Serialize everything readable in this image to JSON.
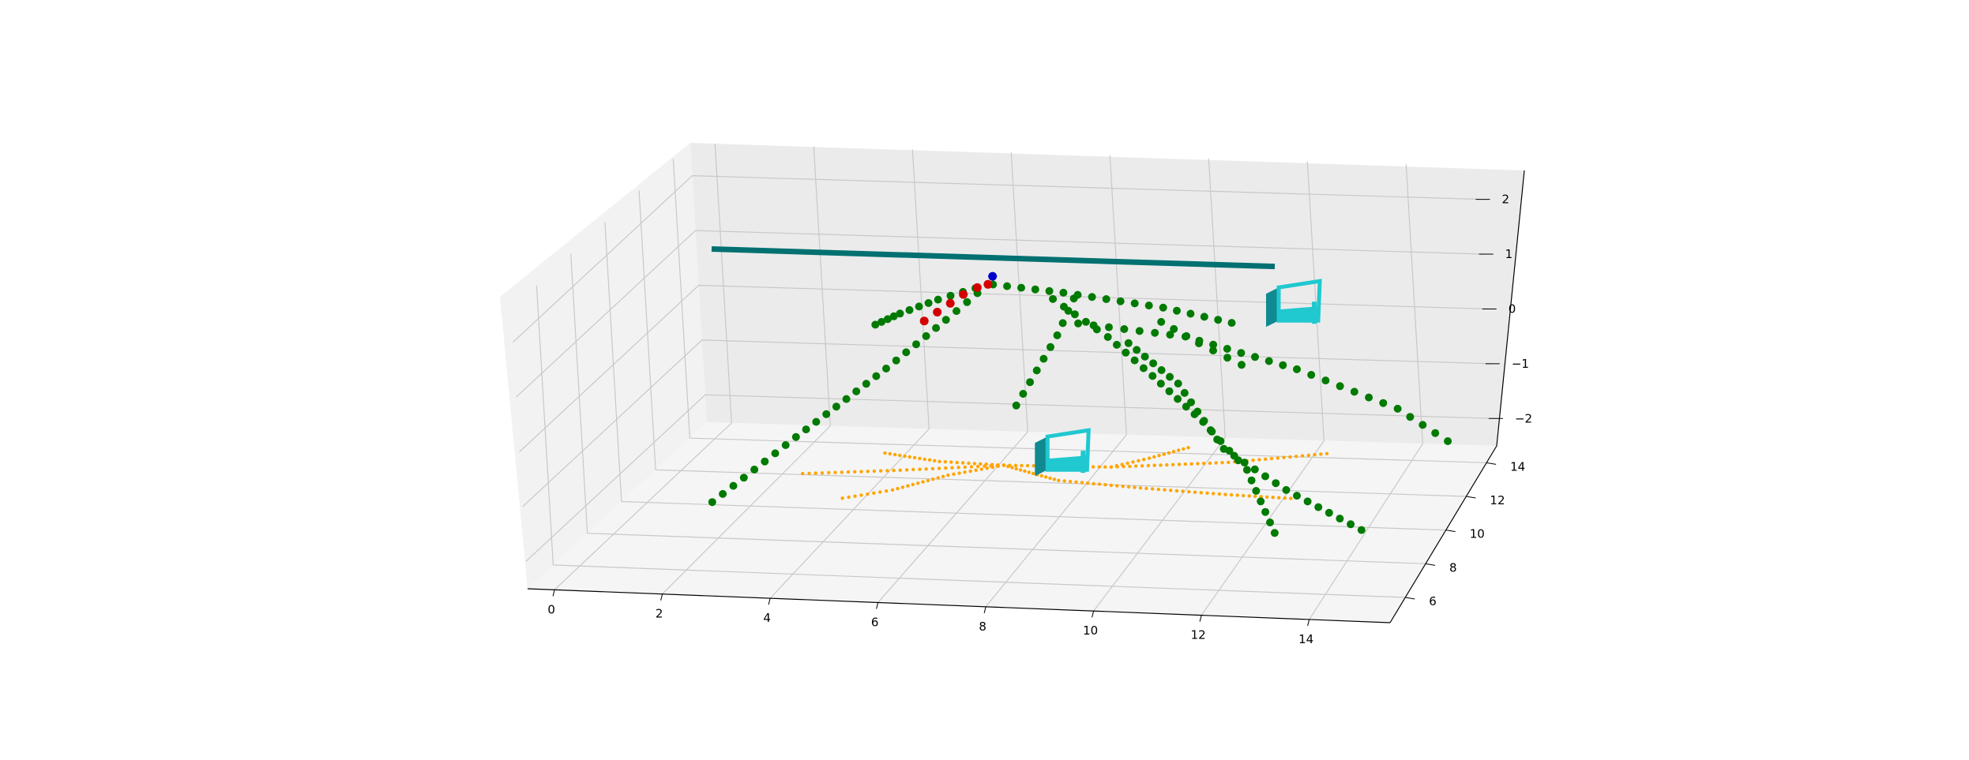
{
  "chart_data": {
    "type": "scatter",
    "projection": "3d",
    "grid": true,
    "title": "",
    "xlabel": "",
    "ylabel": "",
    "zlabel": "",
    "xlim": [
      -0.5,
      15.5
    ],
    "ylim": [
      4.5,
      15
    ],
    "zlim": [
      -2.5,
      2.6
    ],
    "x_ticks": [
      "0",
      "2",
      "4",
      "6",
      "8",
      "10",
      "12",
      "14"
    ],
    "y_ticks": [
      "6",
      "8",
      "10",
      "12",
      "14"
    ],
    "z_ticks": [
      "−2",
      "−1",
      "0",
      "1",
      "2"
    ],
    "colors": {
      "pane_left": "#f2f2f2",
      "pane_back": "#ebebeb",
      "pane_floor": "#f5f5f5",
      "grid": "#c8c8c8",
      "branches": "#007a00",
      "highlight": "#d40000",
      "top_point": "#0000cc",
      "projection": "#ffa500",
      "bar": "#007070",
      "box": "#20c8d0",
      "box_dark": "#108a90"
    },
    "series": [
      {
        "marker": "green-dot",
        "branches": [
          [
            [
              6.2,
              12.3,
              1.0
            ],
            [
              5.6,
              11.4,
              0.6
            ],
            [
              4.8,
              10.0,
              0.1
            ],
            [
              3.6,
              8.0,
              -0.6
            ],
            [
              2.5,
              6.2,
              -1.3
            ]
          ],
          [
            [
              6.2,
              12.3,
              1.0
            ],
            [
              5.1,
              12.6,
              0.6
            ],
            [
              4.2,
              13.0,
              0.2
            ],
            [
              3.5,
              13.6,
              -0.2
            ]
          ],
          [
            [
              6.3,
              12.3,
              1.0
            ],
            [
              7.6,
              12.6,
              0.8
            ],
            [
              9.4,
              13.2,
              0.4
            ],
            [
              10.7,
              13.4,
              0.1
            ]
          ],
          [
            [
              7.5,
              12.2,
              0.8
            ],
            [
              8.6,
              12.0,
              0.2
            ],
            [
              9.6,
              11.4,
              -0.3
            ],
            [
              10.8,
              10.4,
              -0.8
            ],
            [
              11.8,
              9.6,
              -1.4
            ],
            [
              12.6,
              8.2,
              -2.1
            ]
          ],
          [
            [
              8.0,
              12.1,
              0.4
            ],
            [
              10.0,
              12.5,
              0.1
            ],
            [
              12.2,
              12.4,
              -0.4
            ],
            [
              14.2,
              12.2,
              -1.0
            ],
            [
              15.2,
              12.0,
              -1.5
            ]
          ],
          [
            [
              9.0,
              12.0,
              0.1
            ],
            [
              10.2,
              11.0,
              -0.3
            ],
            [
              11.4,
              9.5,
              -1.0
            ],
            [
              12.8,
              8.5,
              -1.4
            ],
            [
              14.4,
              7.6,
              -1.8
            ]
          ],
          [
            [
              7.8,
              12.6,
              0.7
            ],
            [
              7.6,
              12.0,
              0.2
            ],
            [
              7.3,
              11.5,
              -0.3
            ],
            [
              7.0,
              11.0,
              -0.8
            ]
          ],
          [
            [
              9.4,
              13.0,
              0.2
            ],
            [
              10.1,
              13.1,
              -0.2
            ],
            [
              10.9,
              13.2,
              -0.6
            ]
          ]
        ]
      },
      {
        "marker": "red-dot",
        "points": [
          [
            4.8,
            12.6,
            0.2
          ],
          [
            5.1,
            12.5,
            0.4
          ],
          [
            5.4,
            12.4,
            0.6
          ],
          [
            5.7,
            12.3,
            0.8
          ],
          [
            6.0,
            12.25,
            0.95
          ],
          [
            6.2,
            12.3,
            1.0
          ]
        ]
      },
      {
        "marker": "blue-dot",
        "points": [
          [
            6.3,
            12.3,
            1.15
          ]
        ]
      },
      {
        "marker": "orange-dot",
        "branches": [
          [
            [
              6.3,
              12.3,
              -2.3
            ],
            [
              5.0,
              12.4,
              -2.3
            ],
            [
              3.8,
              12.8,
              -2.3
            ]
          ],
          [
            [
              6.3,
              12.3,
              -2.3
            ],
            [
              5.4,
              11.6,
              -2.3
            ],
            [
              4.6,
              10.6,
              -2.3
            ],
            [
              3.8,
              10.0,
              -2.3
            ]
          ],
          [
            [
              6.3,
              12.3,
              -2.3
            ],
            [
              8.4,
              12.4,
              -2.3
            ],
            [
              10.6,
              12.9,
              -2.3
            ],
            [
              12.4,
              13.6,
              -2.3
            ]
          ],
          [
            [
              6.3,
              12.3,
              -2.3
            ],
            [
              7.6,
              11.5,
              -2.3
            ],
            [
              9.4,
              11.2,
              -2.3
            ],
            [
              11.0,
              11.0,
              -2.3
            ],
            [
              12.3,
              10.9,
              -2.3
            ]
          ],
          [
            [
              6.3,
              12.3,
              -2.3
            ],
            [
              4.4,
              11.8,
              -2.3
            ],
            [
              2.6,
              11.4,
              -2.3
            ]
          ],
          [
            [
              8.4,
              12.4,
              -2.3
            ],
            [
              9.0,
              13.0,
              -2.3
            ],
            [
              9.6,
              13.7,
              -2.3
            ]
          ]
        ]
      },
      {
        "marker": "teal-bar",
        "points": [
          [
            0.2,
            13.9,
            1.0
          ],
          [
            11.5,
            13.9,
            1.0
          ]
        ]
      },
      {
        "marker": "cyan-box",
        "points": [
          [
            11.8,
            13.6,
            0.4
          ],
          [
            7.8,
            10.8,
            -1.6
          ]
        ]
      }
    ]
  }
}
